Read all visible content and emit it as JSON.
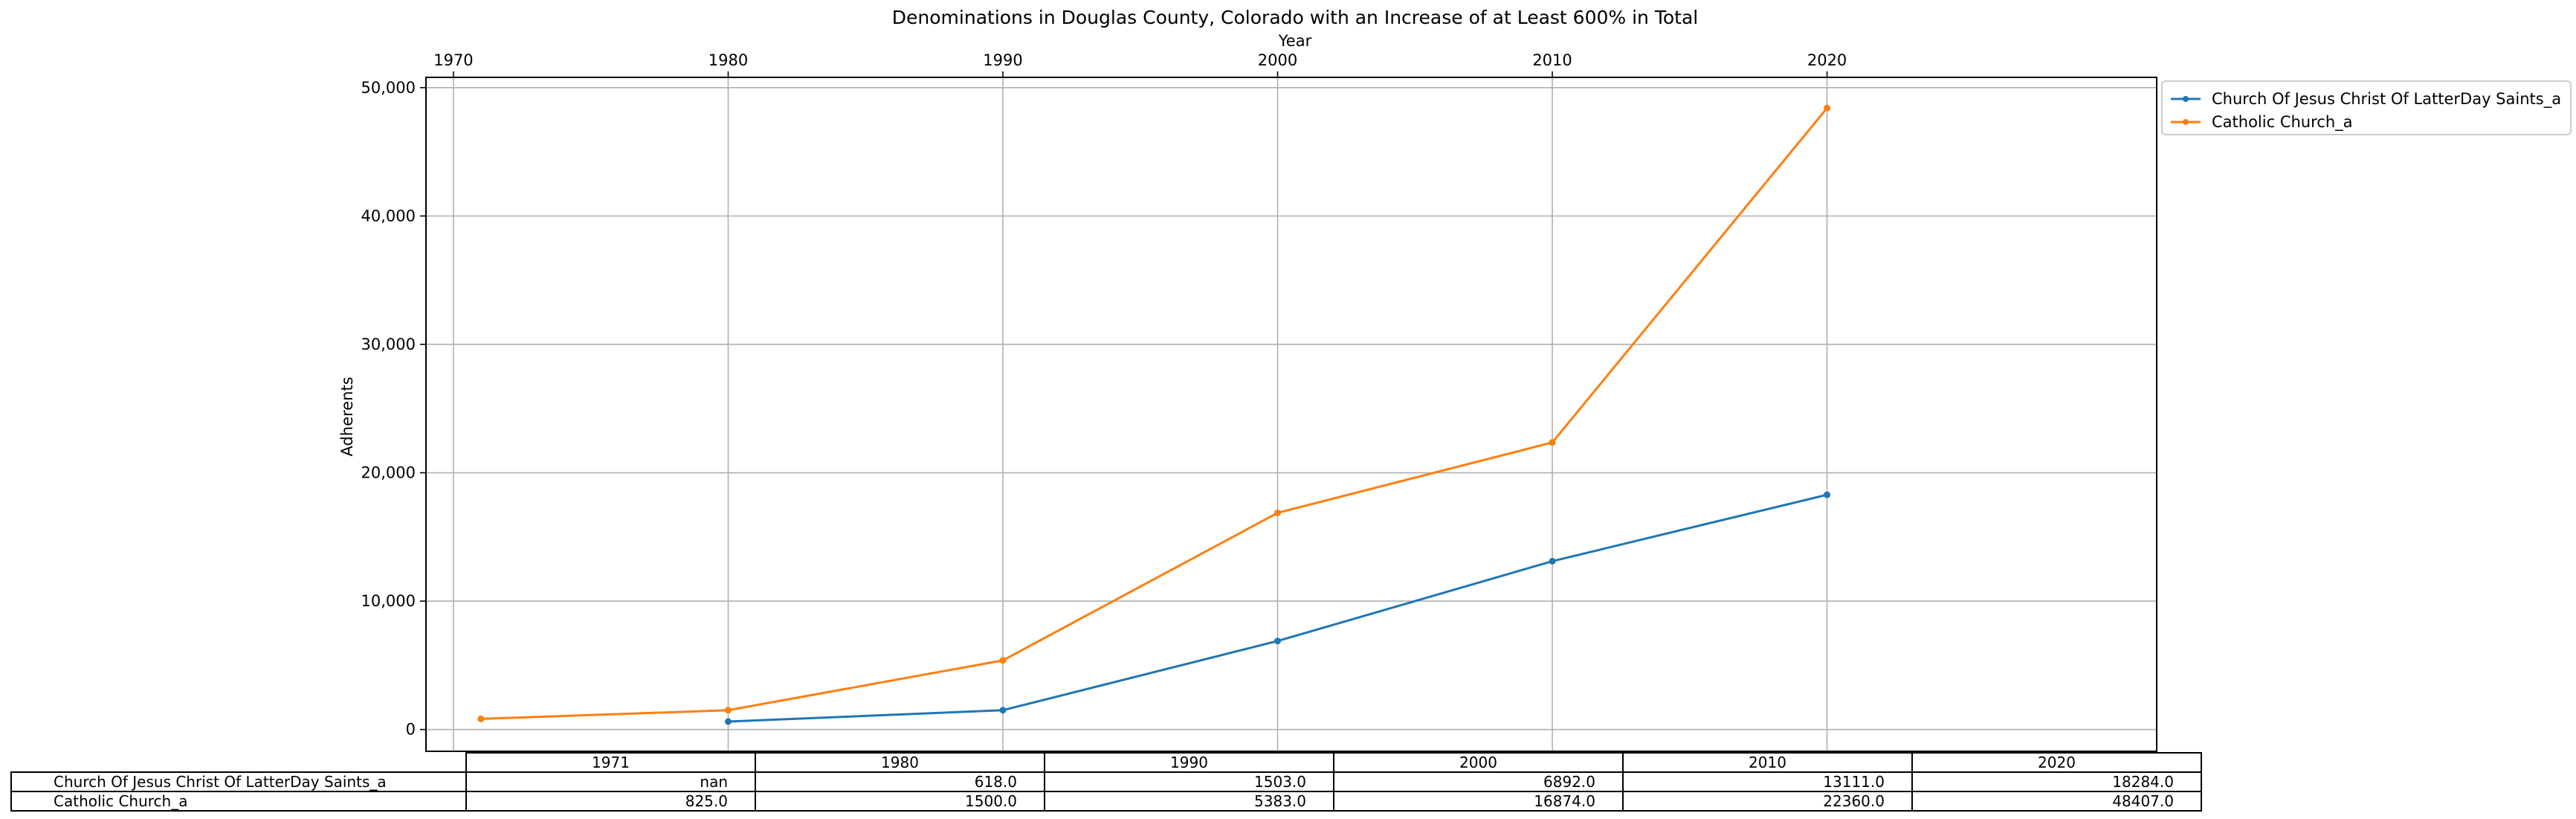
{
  "chart_data": {
    "type": "line",
    "title": "Denominations in Douglas County, Colorado with an Increase of at Least 600% in Total",
    "xlabel": "Year",
    "ylabel": "Adherents",
    "x_ticks": [
      "1970",
      "1980",
      "1990",
      "2000",
      "2010",
      "2020"
    ],
    "y_ticks": [
      "0",
      "10,000",
      "20,000",
      "30,000",
      "40,000",
      "50,000"
    ],
    "xlim": [
      1969,
      2032
    ],
    "ylim": [
      -1700,
      50800
    ],
    "grid": true,
    "legend_position": "outside-top-right",
    "x": [
      1971,
      1980,
      1990,
      2000,
      2010,
      2020
    ],
    "series": [
      {
        "name": "Church Of Jesus Christ Of LatterDay Saints_a",
        "color": "#1f77b4",
        "values": [
          null,
          618.0,
          1503.0,
          6892.0,
          13111.0,
          18284.0
        ]
      },
      {
        "name": "Catholic Church_a",
        "color": "#ff7f0e",
        "values": [
          825.0,
          1500.0,
          5383.0,
          16874.0,
          22360.0,
          48407.0
        ]
      }
    ]
  },
  "table": {
    "header": [
      "1971",
      "1980",
      "1990",
      "2000",
      "2010",
      "2020"
    ],
    "rows": [
      {
        "label": "Church Of Jesus Christ Of LatterDay Saints_a",
        "cells": [
          "nan",
          "618.0",
          "1503.0",
          "6892.0",
          "13111.0",
          "18284.0"
        ]
      },
      {
        "label": "Catholic Church_a",
        "cells": [
          "825.0",
          "1500.0",
          "5383.0",
          "16874.0",
          "22360.0",
          "48407.0"
        ]
      }
    ]
  }
}
